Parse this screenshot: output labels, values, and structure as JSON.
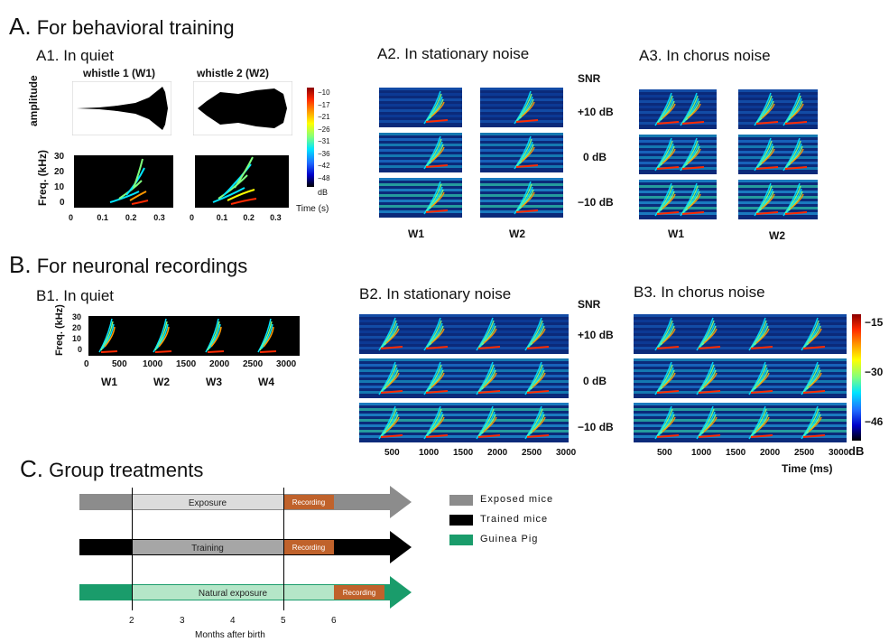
{
  "sectionA": {
    "letter": "A.",
    "title": "For behavioral training"
  },
  "sectionB": {
    "letter": "B.",
    "title": "For neuronal recordings"
  },
  "sectionC": {
    "letter": "C.",
    "title": "Group treatments"
  },
  "A1": {
    "title": "A1. In quiet",
    "whistle1": "whistle 1 (W1)",
    "whistle2": "whistle 2 (W2)",
    "amp_label": "amplitude",
    "freq_label": "Freq. (kHz)",
    "freq_ticks": [
      "30",
      "20",
      "10",
      "0"
    ],
    "time_ticks": [
      "0",
      "0.1",
      "0.2",
      "0.3"
    ],
    "time_label": "Time (s)",
    "cbar_ticks": [
      "−10",
      "−17",
      "−21",
      "−26",
      "−31",
      "−36",
      "−42",
      "−48"
    ],
    "cbar_unit": "dB"
  },
  "A2": {
    "title": "A2. In stationary noise",
    "snr_header": "SNR",
    "snr": [
      "+10 dB",
      "0 dB",
      "−10 dB"
    ],
    "w1": "W1",
    "w2": "W2"
  },
  "A3": {
    "title": "A3. In chorus noise",
    "w1": "W1",
    "w2": "W2"
  },
  "B1": {
    "title": "B1. In quiet",
    "freq_label": "Freq. (kHz)",
    "freq_ticks": [
      "30",
      "20",
      "10",
      "0"
    ],
    "time_ticks": [
      "0",
      "500",
      "1000",
      "1500",
      "2000",
      "2500",
      "3000"
    ],
    "w": [
      "W1",
      "W2",
      "W3",
      "W4"
    ]
  },
  "B2": {
    "title": "B2. In stationary noise",
    "snr_header": "SNR",
    "snr": [
      "+10 dB",
      "0 dB",
      "−10 dB"
    ],
    "time_ticks": [
      "500",
      "1000",
      "1500",
      "2000",
      "2500",
      "3000"
    ]
  },
  "B3": {
    "title": "B3. In chorus noise",
    "time_ticks": [
      "500",
      "1000",
      "1500",
      "2000",
      "2500",
      "3000"
    ],
    "time_label": "Time (ms)",
    "cbar_ticks": [
      "−15",
      "−30",
      "−46"
    ],
    "cbar_unit": "dB"
  },
  "C": {
    "bars": [
      {
        "phase": "Exposure",
        "recording": "Recording",
        "color": "#8c8c8c",
        "inner": "#dcdcdc"
      },
      {
        "phase": "Training",
        "recording": "Recording",
        "color": "#000000",
        "inner": "#a6a6a6"
      },
      {
        "phase": "Natural exposure",
        "recording": "Recording",
        "color": "#1a9c6b",
        "inner": "#b5e6c8"
      }
    ],
    "recording_color": "#c0622b",
    "legend": [
      {
        "label": "Exposed mice",
        "color": "#8c8c8c"
      },
      {
        "label": "Trained mice",
        "color": "#000000"
      },
      {
        "label": "Guinea Pig",
        "color": "#1a9c6b"
      }
    ],
    "x_ticks": [
      "2",
      "3",
      "4",
      "5",
      "6"
    ],
    "x_label": "Months after birth"
  }
}
